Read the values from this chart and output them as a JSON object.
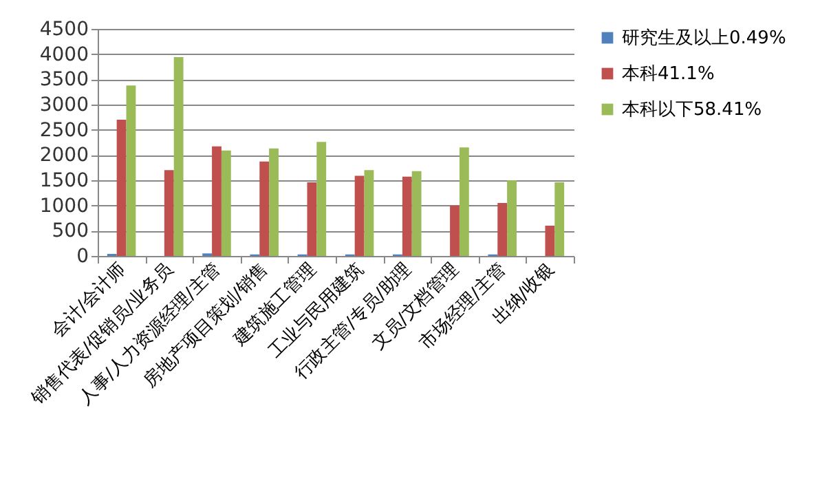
{
  "chart_data": {
    "type": "bar",
    "categories": [
      "会计/会计师",
      "销售代表/促销员/业务员",
      "人事/人力资源经理/主管",
      "房地产项目策划/销售",
      "建筑施工管理",
      "工业与民用建筑",
      "行政主管/专员/助理",
      "文员/文档管理",
      "市场经理/主管",
      "出纳/收银"
    ],
    "series": [
      {
        "name": "研究生及以上0.49%",
        "color": "#4f81bd",
        "values": [
          40,
          0,
          50,
          30,
          30,
          30,
          30,
          0,
          30,
          0
        ]
      },
      {
        "name": "本科41.1%",
        "color": "#c0504d",
        "values": [
          2700,
          1700,
          2170,
          1870,
          1460,
          1590,
          1570,
          1000,
          1050,
          600
        ]
      },
      {
        "name": "本科以下58.41%",
        "color": "#9bbb59",
        "values": [
          3380,
          3940,
          2090,
          2130,
          2260,
          1700,
          1680,
          2150,
          1500,
          1460
        ]
      }
    ],
    "ylim": [
      0,
      4500
    ],
    "yticks": [
      0,
      500,
      1000,
      1500,
      2000,
      2500,
      3000,
      3500,
      4000,
      4500
    ],
    "grid": "y",
    "legend": "top right"
  }
}
